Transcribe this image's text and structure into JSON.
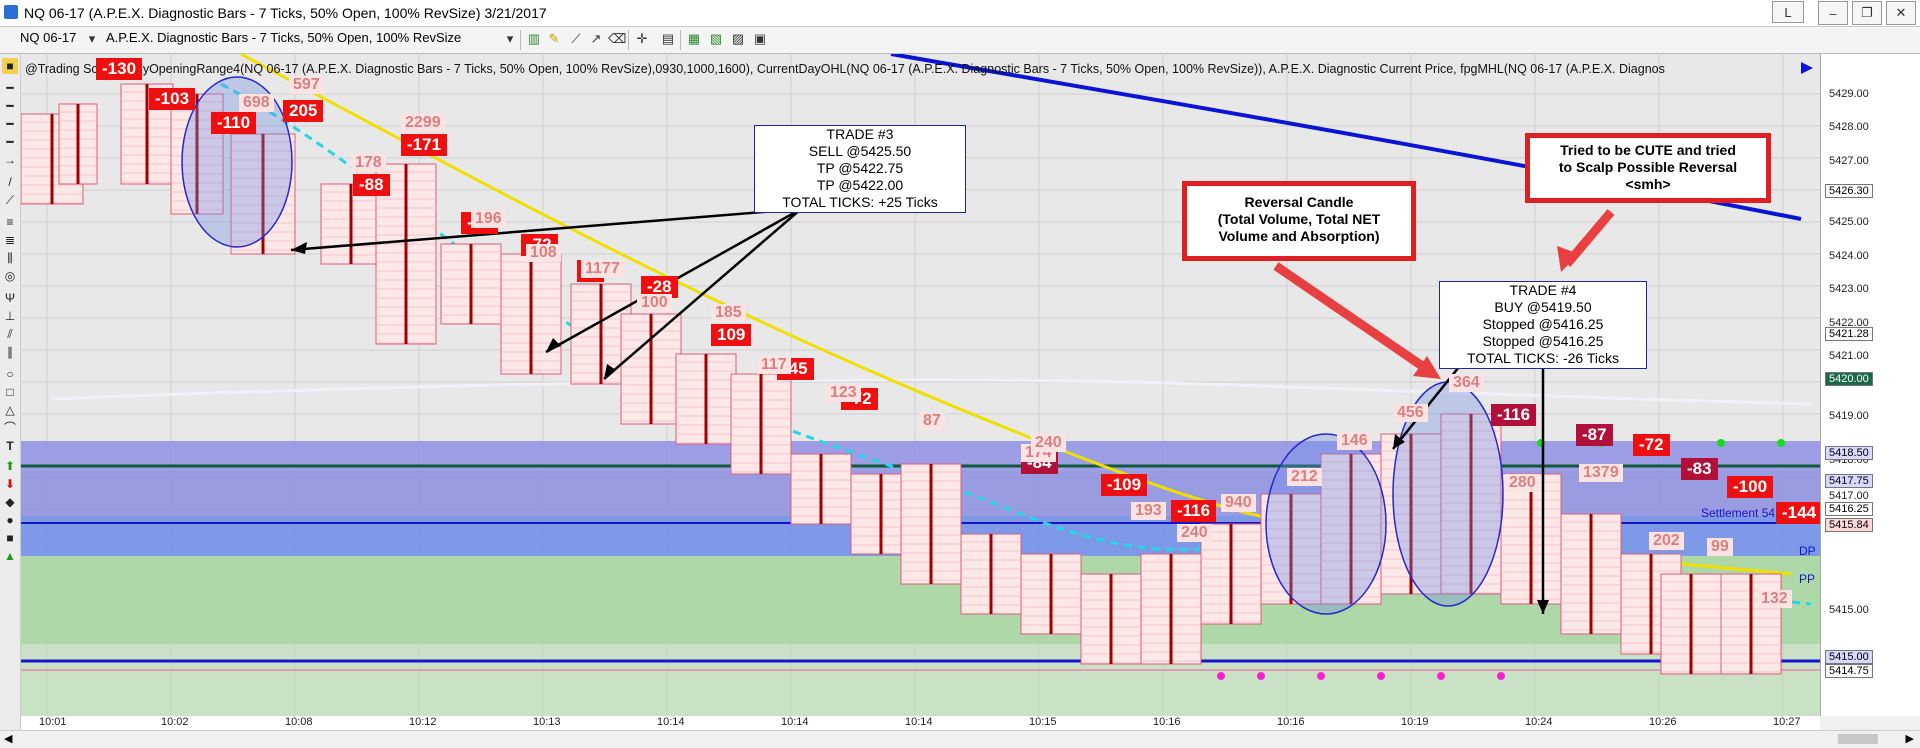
{
  "window": {
    "title": "NQ 06-17 (A.P.E.X. Diagnostic Bars - 7 Ticks, 50% Open, 100% RevSize)  3/21/2017",
    "buttons": {
      "l": "L",
      "minimize": "–",
      "restore": "❐",
      "close": "✕"
    }
  },
  "toolbar": {
    "instrument": "NQ 06-17",
    "bartype": "A.P.E.X. Diagnostic Bars - 7 Ticks, 50% Open, 100% RevSize"
  },
  "chart": {
    "header": "@Trading Sc...ule  BzyOpeningRange4(NQ 06-17 (A.P.E.X. Diagnostic Bars - 7 Ticks, 50% Open, 100% RevSize),0930,1000,1600), CurrentDayOHL(NQ 06-17 (A.P.E.X. Diagnostic Bars - 7 Ticks, 50% Open, 100% RevSize)), A.P.E.X. Diagnostic Current Price, fpgMHL(NQ 06-17 (A.P.E.X. Diagnos",
    "settlement": "Settlement 5418.50",
    "dp_label": "DP",
    "pp_label": "PP",
    "deltas": [
      {
        "text": "-130"
      },
      {
        "text": "-103"
      },
      {
        "text": "-110"
      },
      {
        "text": "205"
      },
      {
        "text": "-171"
      },
      {
        "text": "-88"
      },
      {
        "text": "-86"
      },
      {
        "text": "-72"
      },
      {
        "text": "-7"
      },
      {
        "text": "-28"
      },
      {
        "text": "109"
      },
      {
        "text": "-45"
      },
      {
        "text": "-72"
      },
      {
        "text": "-84"
      },
      {
        "text": "-109"
      },
      {
        "text": "-116"
      },
      {
        "text": "-116"
      },
      {
        "text": "-87"
      },
      {
        "text": "-72"
      },
      {
        "text": "-83"
      },
      {
        "text": "-100"
      },
      {
        "text": "-144"
      }
    ],
    "volumes": [
      {
        "text": "698"
      },
      {
        "text": "597"
      },
      {
        "text": "2299"
      },
      {
        "text": "178"
      },
      {
        "text": "196"
      },
      {
        "text": "108"
      },
      {
        "text": "1177"
      },
      {
        "text": "100"
      },
      {
        "text": "185"
      },
      {
        "text": "117"
      },
      {
        "text": "123"
      },
      {
        "text": "87"
      },
      {
        "text": "174"
      },
      {
        "text": "240"
      },
      {
        "text": "193"
      },
      {
        "text": "240"
      },
      {
        "text": "940"
      },
      {
        "text": "212"
      },
      {
        "text": "146"
      },
      {
        "text": "456"
      },
      {
        "text": "364"
      },
      {
        "text": "280"
      },
      {
        "text": "1379"
      },
      {
        "text": "202"
      },
      {
        "text": "99"
      },
      {
        "text": "132"
      }
    ]
  },
  "notes": {
    "trade3": [
      "TRADE #3",
      "SELL @5425.50",
      "TP @5422.75",
      "TP @5422.00",
      "TOTAL TICKS: +25 Ticks"
    ],
    "trade4": [
      "TRADE #4",
      "BUY @5419.50",
      "Stopped @5416.25",
      "Stopped @5416.25",
      "TOTAL TICKS: -26 Ticks"
    ],
    "reversal": [
      "Reversal Candle",
      "(Total Volume, Total NET",
      "Volume and Absorption)"
    ],
    "cute": [
      "Tried to be CUTE and tried",
      "to Scalp Possible Reversal",
      "<smh>"
    ]
  },
  "price_axis": {
    "labels": [
      "5429.00",
      "5428.00",
      "5427.00",
      "5425.00",
      "5424.00",
      "5423.00",
      "5422.00",
      "5421.00",
      "5419.00",
      "5418.00",
      "5417.00",
      "5416.00",
      "5415.00"
    ],
    "tags": [
      "5426.30",
      "5421.28",
      "5420.00",
      "5418.50",
      "5417.75",
      "5416.25",
      "5415.84",
      "5415.00",
      "5414.75"
    ]
  },
  "time_axis": [
    "10:01",
    "10:02",
    "10:08",
    "10:12",
    "10:13",
    "10:14",
    "10:14",
    "10:14",
    "10:15",
    "10:16",
    "10:16",
    "10:19",
    "10:24",
    "10:26",
    "10:27"
  ],
  "colors": {
    "yellow_line": "#f0e000",
    "cyan_line": "#26d6e6",
    "blue_line": "#0a14d6",
    "green_line": "#1a6a4a",
    "red_delta": "#ee1010",
    "crimson_delta": "#b0103a"
  }
}
